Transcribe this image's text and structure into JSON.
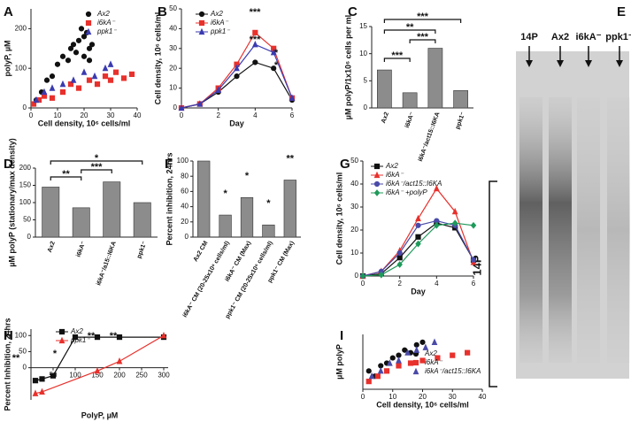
{
  "chart_data": [
    {
      "panel": "A",
      "type": "scatter",
      "xlabel": "Cell density, 10⁶ cells/ml",
      "ylabel": "polyP, µM",
      "xlim": [
        0,
        40
      ],
      "xticks": [
        0,
        10,
        20,
        30,
        40
      ],
      "ylim": [
        0,
        250
      ],
      "yticks": [
        0,
        100,
        200
      ],
      "series": [
        {
          "name": "Ax2",
          "color": "#111111",
          "marker": "circle",
          "x": [
            2,
            4,
            6,
            8,
            10,
            12,
            14,
            15,
            16,
            17,
            18,
            19,
            20,
            20,
            21,
            22,
            22,
            23
          ],
          "values": [
            20,
            40,
            70,
            80,
            110,
            130,
            120,
            150,
            160,
            140,
            170,
            200,
            180,
            130,
            190,
            150,
            120,
            160
          ]
        },
        {
          "name": "i6kA⁻",
          "color": "#e8312c",
          "marker": "square",
          "x": [
            1,
            3,
            5,
            8,
            12,
            15,
            18,
            22,
            25,
            28,
            30,
            32,
            35,
            38
          ],
          "values": [
            10,
            20,
            30,
            25,
            40,
            60,
            50,
            70,
            60,
            80,
            70,
            90,
            75,
            85
          ]
        },
        {
          "name": "ppk1⁻",
          "color": "#3b3bb0",
          "marker": "triangle",
          "x": [
            2,
            5,
            8,
            12,
            16,
            20,
            24,
            28,
            30
          ],
          "values": [
            20,
            40,
            50,
            60,
            70,
            90,
            80,
            100,
            110
          ]
        }
      ]
    },
    {
      "panel": "B",
      "type": "line",
      "xlabel": "Day",
      "ylabel": "Cell density, 10⁶ cells/ml",
      "x": [
        0,
        1,
        2,
        3,
        4,
        5,
        6
      ],
      "xlim": [
        0,
        6
      ],
      "xticks": [
        0,
        2,
        4,
        6
      ],
      "ylim": [
        0,
        50
      ],
      "yticks": [
        0,
        10,
        20,
        30,
        40,
        50
      ],
      "series": [
        {
          "name": "Ax2",
          "color": "#111111",
          "marker": "circle",
          "values": [
            0,
            2,
            8,
            16,
            23,
            20,
            4
          ]
        },
        {
          "name": "i6kA⁻",
          "color": "#e8312c",
          "marker": "square",
          "values": [
            0,
            2,
            10,
            22,
            38,
            30,
            5
          ]
        },
        {
          "name": "ppk1⁻",
          "color": "#3b3bb0",
          "marker": "triangle",
          "values": [
            0,
            2,
            9,
            20,
            32,
            28,
            5
          ]
        }
      ],
      "annotations": [
        {
          "text": "***",
          "color": "#e8312c"
        },
        {
          "text": "***",
          "color": "#3b3bb0"
        },
        {
          "text": "*",
          "color": "#e8312c"
        },
        {
          "text": "*",
          "color": "#3b3bb0"
        }
      ]
    },
    {
      "panel": "C",
      "type": "bar",
      "ylabel": "µM polyP/1x10⁶ cells per ml",
      "color": "#8c8c8c",
      "categories": [
        "Ax2",
        "i6kA⁻",
        "i6kA⁻/act15::I6KA",
        "ppk1⁻"
      ],
      "values": [
        7,
        2.8,
        11,
        3.2
      ],
      "ylim": [
        0,
        15
      ],
      "yticks": [
        0,
        5,
        10,
        15
      ],
      "annotations": [
        {
          "text": "***"
        },
        {
          "text": "**"
        },
        {
          "text": "***"
        },
        {
          "text": "***"
        }
      ]
    },
    {
      "panel": "D",
      "type": "bar",
      "ylabel": "µM polyP (stationary/max density)",
      "color": "#8c8c8c",
      "categories": [
        "Ax2",
        "i6kA⁻",
        "i6kA⁻/a15::I6KA",
        "ppk1⁻"
      ],
      "values": [
        145,
        85,
        160,
        100
      ],
      "ylim": [
        0,
        200
      ],
      "yticks": [
        0,
        50,
        100,
        150,
        200
      ],
      "annotations": [
        {
          "text": "*"
        },
        {
          "text": "**"
        },
        {
          "text": "***"
        }
      ]
    },
    {
      "panel": "E",
      "type": "gel",
      "lanes": [
        "14P",
        "Ax2",
        "i6kA⁻",
        "ppk1⁻"
      ],
      "bracket_label": "14P"
    },
    {
      "panel": "F",
      "type": "bar",
      "ylabel": "Percent inhibition, 24hrs",
      "color": "#8c8c8c",
      "categories": [
        "Ax2 CM",
        "i6kA⁻ CM (20-25x10⁶ cells/ml)",
        "i6kA⁻ CM (Max)",
        "ppk1⁻ CM (20-25x10⁶ cells/ml)",
        "ppk1⁻ CM (Max)"
      ],
      "values": [
        100,
        29,
        52,
        16,
        75
      ],
      "ylim": [
        0,
        100
      ],
      "yticks": [
        0,
        20,
        40,
        60,
        80,
        100
      ],
      "annotations": [
        {
          "text": "*"
        },
        {
          "text": "*"
        },
        {
          "text": "*"
        },
        {
          "text": "**"
        }
      ]
    },
    {
      "panel": "G",
      "type": "line",
      "xlabel": "Day",
      "ylabel": "Cell density, 10⁶ cells/ml",
      "x": [
        0,
        1,
        2,
        3,
        4,
        5,
        6
      ],
      "xlim": [
        0,
        6
      ],
      "xticks": [
        0,
        2,
        4,
        6
      ],
      "ylim": [
        0,
        50
      ],
      "yticks": [
        0,
        10,
        20,
        30,
        40,
        50
      ],
      "series": [
        {
          "name": "Ax2",
          "color": "#111111",
          "marker": "square",
          "values": [
            0,
            1,
            8,
            17,
            23,
            21,
            7
          ]
        },
        {
          "name": "i6kA⁻",
          "color": "#e8312c",
          "marker": "triangle",
          "values": [
            0,
            2,
            11,
            25,
            38,
            28,
            6
          ]
        },
        {
          "name": "i6kA⁻/act15::I6KA",
          "color": "#4a4aa8",
          "marker": "circle",
          "values": [
            0,
            2,
            10,
            22,
            24,
            22,
            7
          ]
        },
        {
          "name": "i6kA⁻ +polyP",
          "color": "#1f9a5a",
          "marker": "diamond",
          "values": [
            0,
            0.5,
            5,
            14,
            22,
            23,
            22
          ]
        }
      ]
    },
    {
      "panel": "H",
      "type": "line",
      "xlabel": "PolyP, µM",
      "ylabel": "Percent Inhibition, 24hrs",
      "xlim": [
        0,
        310
      ],
      "xticks": [
        50,
        100,
        150,
        200,
        250,
        300
      ],
      "ylim": [
        -100,
        120
      ],
      "yticks": [
        0,
        50,
        100
      ],
      "series": [
        {
          "name": "Ax2",
          "color": "#111111",
          "marker": "square",
          "x": [
            10,
            25,
            50,
            100,
            150,
            200,
            300
          ],
          "values": [
            -40,
            -35,
            -25,
            95,
            95,
            95,
            95
          ]
        },
        {
          "name": "ppk1⁻",
          "color": "#e8312c",
          "marker": "triangle",
          "x": [
            10,
            25,
            150,
            200,
            300
          ],
          "values": [
            -80,
            -75,
            -10,
            20,
            100
          ]
        }
      ],
      "annotations": [
        {
          "text": "**"
        },
        {
          "text": "*"
        },
        {
          "text": "**"
        },
        {
          "text": "**"
        }
      ]
    },
    {
      "panel": "I",
      "type": "scatter",
      "xlabel": "Cell density, 10⁶ cells/ml",
      "ylabel": "µM polyP",
      "xlim": [
        0,
        40
      ],
      "xticks": [
        0,
        10,
        20,
        30,
        40
      ],
      "ylim": [
        50,
        260
      ],
      "series": [
        {
          "name": "Ax2",
          "color": "#111111",
          "marker": "circle",
          "x": [
            2,
            4,
            6,
            8,
            10,
            12,
            14,
            16,
            18,
            20
          ],
          "values": [
            120,
            100,
            140,
            150,
            170,
            180,
            200,
            190,
            220,
            230
          ]
        },
        {
          "name": "i6kA⁻",
          "color": "#e8312c",
          "marker": "square",
          "x": [
            2,
            5,
            8,
            12,
            16,
            20,
            25,
            30,
            35
          ],
          "values": [
            80,
            100,
            120,
            140,
            150,
            160,
            170,
            180,
            190
          ]
        },
        {
          "name": "i6kA⁻/act15::I6KA",
          "color": "#4a4aa8",
          "marker": "triangle",
          "x": [
            3,
            6,
            9,
            12,
            15,
            18,
            21,
            24
          ],
          "values": [
            100,
            120,
            150,
            160,
            190,
            200,
            210,
            230
          ]
        }
      ]
    }
  ]
}
